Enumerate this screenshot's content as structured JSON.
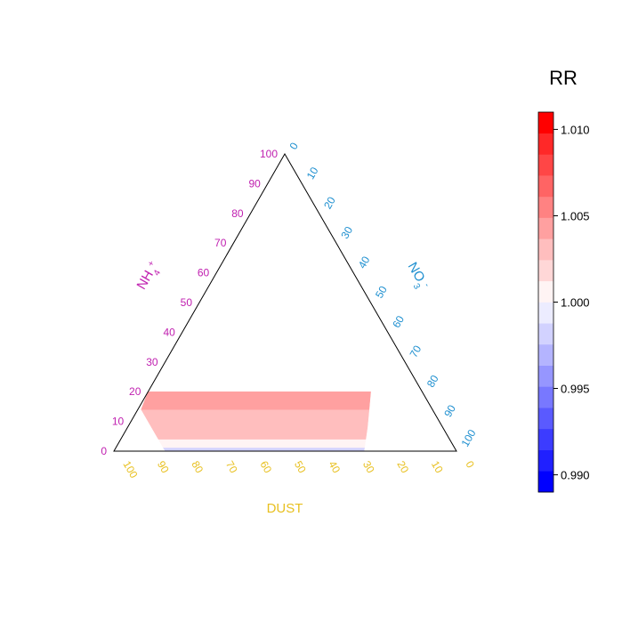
{
  "chart_data": {
    "type": "ternary-heatmap",
    "axes": {
      "left": {
        "label": "NH4+",
        "label_main": "NH",
        "label_sub": "4",
        "label_sup": "+",
        "color": "#c020b0",
        "ticks": [
          "0",
          "10",
          "20",
          "30",
          "40",
          "50",
          "60",
          "70",
          "80",
          "90",
          "100"
        ]
      },
      "right": {
        "label": "NO3-",
        "label_main": "NO",
        "label_sub": "3",
        "label_sup": "-",
        "color": "#2090d0",
        "ticks": [
          "0",
          "10",
          "20",
          "30",
          "40",
          "50",
          "60",
          "70",
          "80",
          "90",
          "100"
        ]
      },
      "bottom": {
        "label": "DUST",
        "color": "#e8c020",
        "ticks": [
          "100",
          "90",
          "80",
          "70",
          "60",
          "50",
          "40",
          "30",
          "20",
          "10",
          "0"
        ]
      }
    },
    "data_region": {
      "nh4_range": [
        0,
        20
      ],
      "dust_min": 15,
      "nh4_at_upper_left_cut": 15,
      "nh4_at_lower_right_cut": 8
    },
    "bands": [
      {
        "nh4_range": [
          0,
          1.2
        ],
        "rr": 0.9985
      },
      {
        "nh4_range": [
          1.2,
          4
        ],
        "rr": 1.0
      },
      {
        "nh4_range": [
          4,
          8
        ],
        "rr": 1.0025
      },
      {
        "nh4_range": [
          8,
          14
        ],
        "rr": 1.0035
      },
      {
        "nh4_range": [
          14,
          20
        ],
        "rr": 1.0045
      }
    ],
    "legend": {
      "title": "RR",
      "range": [
        0.989,
        1.011
      ],
      "ticks": [
        "0.990",
        "0.995",
        "1.000",
        "1.005",
        "1.010"
      ],
      "tick_values": [
        0.99,
        0.995,
        1.0,
        1.005,
        1.01
      ],
      "colors": [
        "#0000FF",
        "#2020FF",
        "#3C3CFF",
        "#5A5AFF",
        "#7878FF",
        "#9696FF",
        "#B4B4FF",
        "#D2D2FF",
        "#ECECFF",
        "#FFF4F4",
        "#FFD7D7",
        "#FFBEBE",
        "#FFA0A0",
        "#FF8282",
        "#FF6464",
        "#FF4646",
        "#FF2828",
        "#FF0000"
      ]
    }
  }
}
